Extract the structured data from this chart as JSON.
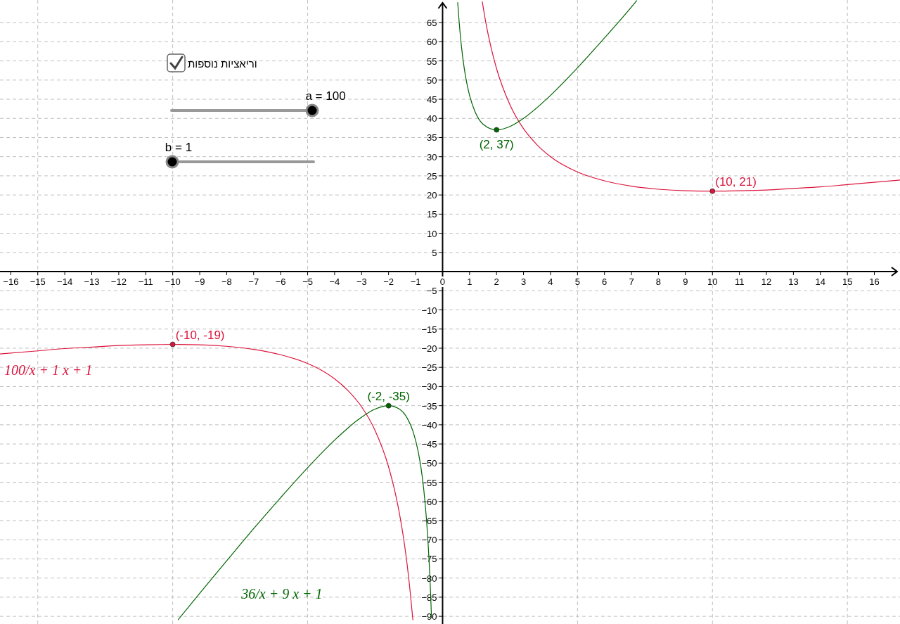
{
  "chart_data": {
    "type": "line",
    "xlim": [
      -16.4,
      16.95
    ],
    "ylim": [
      -92,
      70.9
    ],
    "xticks": [
      -16,
      -15,
      -14,
      -13,
      -12,
      -11,
      -10,
      -9,
      -8,
      -7,
      -6,
      -5,
      -4,
      -3,
      -2,
      -1,
      0,
      1,
      2,
      3,
      4,
      5,
      6,
      7,
      8,
      9,
      10,
      11,
      12,
      13,
      14,
      15,
      16
    ],
    "yticks": [
      -90,
      -85,
      -80,
      -75,
      -70,
      -65,
      -60,
      -55,
      -50,
      -45,
      -40,
      -35,
      -30,
      -25,
      -20,
      -15,
      -10,
      -5,
      5,
      10,
      15,
      20,
      25,
      30,
      35,
      40,
      45,
      50,
      55,
      60,
      65
    ],
    "grid": true,
    "marker": "none",
    "line_style": "solid",
    "series": [
      {
        "name": "100/x + 1 x + 1",
        "color": "#dc143c",
        "x": [
          -16.4,
          -15,
          -14,
          -13,
          -12,
          -11,
          -10,
          -9,
          -8,
          -7,
          -6,
          -5,
          -4.5,
          -4,
          -3.5,
          -3,
          -2.5,
          -2,
          -1.8,
          -1.6,
          -1.4,
          -1.25,
          -1.1
        ],
        "values": [
          -21.5,
          -20.7,
          -20.1,
          -19.7,
          -19.3,
          -19.1,
          -19,
          -19.1,
          -19.5,
          -20.3,
          -21.7,
          -24,
          -25.7,
          -28,
          -31.1,
          -35.3,
          -41.5,
          -51,
          -56.4,
          -63.1,
          -71.8,
          -80.3,
          -91
        ]
      },
      {
        "color": "#dc143c",
        "x": [
          1.47,
          1.6,
          1.8,
          2,
          2.5,
          3,
          3.5,
          4,
          5,
          6,
          7,
          8,
          9,
          10,
          11,
          12,
          13,
          14,
          15,
          16.95
        ],
        "values": [
          70.5,
          65.1,
          58.4,
          53,
          43.5,
          37.3,
          33.1,
          30,
          26,
          23.7,
          22.3,
          21.5,
          21.1,
          21,
          21.1,
          21.3,
          21.7,
          22.1,
          22.7,
          23.9
        ]
      },
      {
        "name": "36/x + 9 x + 1",
        "color": "#006400",
        "x": [
          -9.8,
          -9,
          -8,
          -7,
          -6,
          -5,
          -4,
          -3.5,
          -3,
          -2.5,
          -2,
          -1.6,
          -1.3,
          -1.1,
          -0.9,
          -0.8,
          -0.7,
          -0.6,
          -0.5,
          -0.45,
          -0.41
        ],
        "values": [
          -90.9,
          -84,
          -75.5,
          -67.1,
          -59,
          -51.2,
          -44,
          -40.8,
          -38,
          -35.9,
          -35,
          -35.9,
          -38.4,
          -41.6,
          -47.1,
          -51.2,
          -56.7,
          -64.4,
          -75.5,
          -83,
          -90.5
        ]
      },
      {
        "color": "#006400",
        "x": [
          0.56,
          0.6,
          0.7,
          0.8,
          0.9,
          1,
          1.2,
          1.5,
          2,
          2.5,
          3,
          4,
          5,
          6,
          7,
          7.2
        ],
        "values": [
          70.3,
          66.4,
          58.7,
          53.2,
          49.1,
          46,
          41.8,
          38.5,
          37,
          37.9,
          40,
          46,
          53.2,
          61,
          69.1,
          70.8
        ]
      },
      {
        "type": "scatter",
        "marker": "circle",
        "color": "#dc143c",
        "x": [
          10,
          -10
        ],
        "values": [
          21,
          -19
        ],
        "value_labels": [
          "(10, 21)",
          "(-10, -19)"
        ]
      },
      {
        "type": "scatter",
        "marker": "circle",
        "color": "#006400",
        "x": [
          2,
          -2
        ],
        "values": [
          37,
          -35
        ],
        "value_labels": [
          "(2, 37)",
          "(-2, -35)"
        ]
      }
    ],
    "annotations": [
      "וריאציות נוספות",
      "a = 100",
      "b = 1"
    ]
  }
}
